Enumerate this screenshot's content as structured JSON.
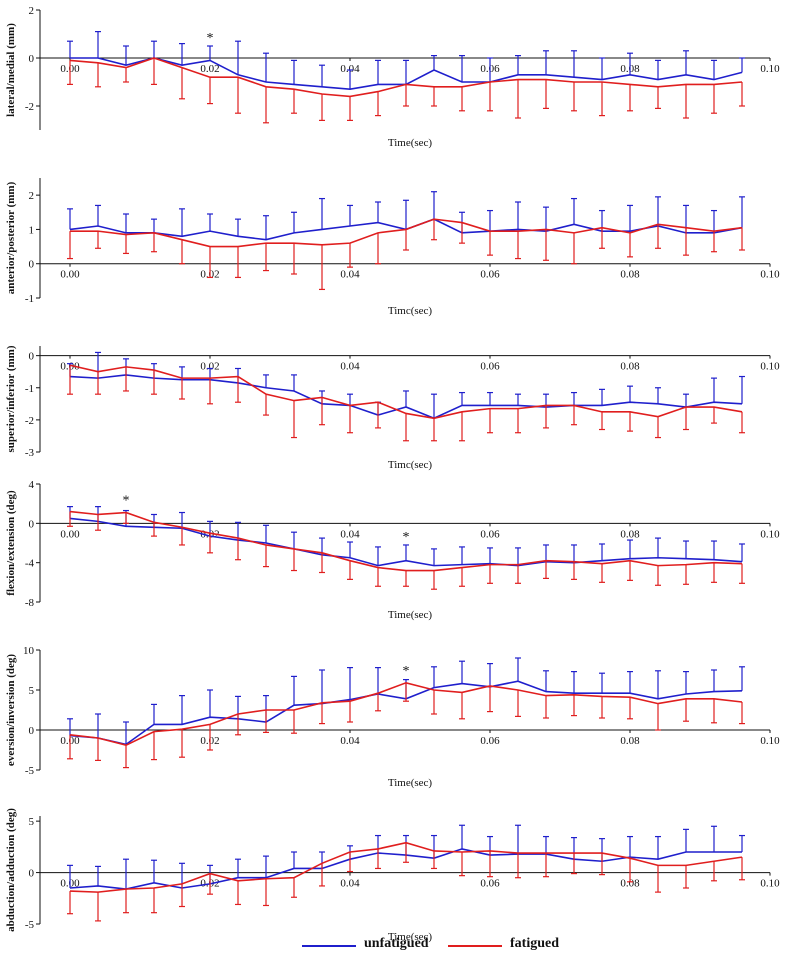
{
  "colors": {
    "unfatigued": "#1f1fcc",
    "fatigued": "#e01e1e",
    "axis": "#111111"
  },
  "legend": [
    {
      "key": "unfatigued",
      "label": "unfatigued"
    },
    {
      "key": "fatigued",
      "label": "fatigued"
    }
  ],
  "chart_data": [
    {
      "type": "line",
      "ylabel": "lateral/medial (mm)",
      "xlabel": "Time(sec)",
      "ylim": [
        -3,
        2
      ],
      "yticks": [
        -2,
        0,
        2
      ],
      "xticks": [
        "0.00",
        "0.02",
        "0.04",
        "0.06",
        "0.08",
        "0.10"
      ],
      "x": [
        0,
        0.004,
        0.008,
        0.012,
        0.016,
        0.02,
        0.024,
        0.028,
        0.032,
        0.036,
        0.04,
        0.044,
        0.048,
        0.052,
        0.056,
        0.06,
        0.064,
        0.068,
        0.072,
        0.076,
        0.08,
        0.084,
        0.088,
        0.092,
        0.096
      ],
      "series": [
        {
          "name": "unfatigued",
          "values": [
            0,
            0,
            -0.3,
            0,
            -0.3,
            -0.1,
            -0.7,
            -1.0,
            -1.1,
            -1.2,
            -1.3,
            -1.1,
            -1.1,
            -0.5,
            -1.0,
            -1.0,
            -0.7,
            -0.7,
            -0.8,
            -0.9,
            -0.7,
            -0.9,
            -0.7,
            -0.9,
            -0.6
          ],
          "err": [
            0.7,
            1.1,
            0.8,
            0.7,
            0.9,
            0.6,
            1.4,
            1.2,
            1.0,
            0.9,
            0.8,
            1.0,
            1.0,
            0.6,
            1.1,
            1.0,
            0.8,
            1.0,
            1.1,
            0.9,
            0.9,
            0.8,
            1.0,
            0.8,
            0.6
          ]
        },
        {
          "name": "fatigued",
          "values": [
            -0.1,
            -0.2,
            -0.4,
            0,
            -0.4,
            -0.8,
            -0.8,
            -1.2,
            -1.3,
            -1.5,
            -1.6,
            -1.4,
            -1.1,
            -1.2,
            -1.2,
            -1.0,
            -0.9,
            -0.9,
            -1.0,
            -1.0,
            -1.1,
            -1.2,
            -1.1,
            -1.1,
            -1.0
          ],
          "err": [
            1.0,
            1.0,
            0.6,
            1.1,
            1.3,
            1.1,
            1.5,
            1.5,
            1.0,
            1.1,
            1.0,
            1.0,
            0.9,
            0.8,
            1.0,
            1.2,
            1.6,
            1.2,
            1.2,
            1.4,
            1.1,
            0.9,
            1.4,
            1.2,
            1.0
          ]
        }
      ],
      "annotations": [
        {
          "x": 0.02,
          "text": "*"
        }
      ]
    },
    {
      "type": "line",
      "ylabel": "anterior/posterior (mm)",
      "xlabel": "Timc(sec)",
      "ylim": [
        -1,
        2.5
      ],
      "yticks": [
        -1,
        0,
        1,
        2
      ],
      "xticks": [
        "0.00",
        "0.02",
        "0.04",
        "0.06",
        "0.08",
        "0.10"
      ],
      "x": [
        0,
        0.004,
        0.008,
        0.012,
        0.016,
        0.02,
        0.024,
        0.028,
        0.032,
        0.036,
        0.04,
        0.044,
        0.048,
        0.052,
        0.056,
        0.06,
        0.064,
        0.068,
        0.072,
        0.076,
        0.08,
        0.084,
        0.088,
        0.092,
        0.096
      ],
      "series": [
        {
          "name": "unfatigued",
          "values": [
            1.0,
            1.1,
            0.9,
            0.9,
            0.8,
            0.95,
            0.8,
            0.7,
            0.9,
            1.0,
            1.1,
            1.2,
            1.0,
            1.3,
            0.9,
            0.95,
            1.0,
            0.95,
            1.15,
            0.95,
            0.95,
            1.1,
            0.9,
            0.9,
            1.05
          ],
          "err": [
            0.6,
            0.6,
            0.55,
            0.4,
            0.8,
            0.5,
            0.5,
            0.7,
            0.6,
            0.9,
            0.6,
            0.6,
            0.85,
            0.8,
            0.6,
            0.6,
            0.8,
            0.7,
            0.75,
            0.6,
            0.75,
            0.85,
            0.8,
            0.65,
            0.9
          ]
        },
        {
          "name": "fatigued",
          "values": [
            0.95,
            0.95,
            0.85,
            0.9,
            0.7,
            0.5,
            0.5,
            0.6,
            0.6,
            0.55,
            0.6,
            0.9,
            1.0,
            1.3,
            1.2,
            0.95,
            0.95,
            1.0,
            0.9,
            1.05,
            0.9,
            1.15,
            1.05,
            0.95,
            1.05
          ],
          "err": [
            0.8,
            0.5,
            0.55,
            0.55,
            0.7,
            0.9,
            0.9,
            0.8,
            0.9,
            1.3,
            0.7,
            0.9,
            0.6,
            0.6,
            0.6,
            0.7,
            0.8,
            0.9,
            0.9,
            0.6,
            0.7,
            0.7,
            0.8,
            0.6,
            0.65
          ]
        }
      ],
      "annotations": []
    },
    {
      "type": "line",
      "ylabel": "superior/inferior (mm)",
      "xlabel": "Timc(sec)",
      "ylim": [
        -3,
        0.3
      ],
      "yticks": [
        -3,
        -2,
        -1,
        0
      ],
      "xticks": [
        "0.00",
        "0.02",
        "0.04",
        "0.06",
        "0.08",
        "0.10"
      ],
      "x": [
        0,
        0.004,
        0.008,
        0.012,
        0.016,
        0.02,
        0.024,
        0.028,
        0.032,
        0.036,
        0.04,
        0.044,
        0.048,
        0.052,
        0.056,
        0.06,
        0.064,
        0.068,
        0.072,
        0.076,
        0.08,
        0.084,
        0.088,
        0.092,
        0.096
      ],
      "series": [
        {
          "name": "unfatigued",
          "values": [
            -0.65,
            -0.7,
            -0.6,
            -0.7,
            -0.75,
            -0.75,
            -0.85,
            -1.0,
            -1.1,
            -1.5,
            -1.55,
            -1.85,
            -1.6,
            -1.95,
            -1.55,
            -1.55,
            -1.55,
            -1.6,
            -1.55,
            -1.55,
            -1.45,
            -1.5,
            -1.6,
            -1.45,
            -1.5
          ],
          "err": [
            0.4,
            0.8,
            0.5,
            0.45,
            0.4,
            0.35,
            0.45,
            0.4,
            0.5,
            0.4,
            0.35,
            0.4,
            0.5,
            0.75,
            0.4,
            0.4,
            0.35,
            0.4,
            0.4,
            0.5,
            0.5,
            0.5,
            0.4,
            0.75,
            0.85
          ]
        },
        {
          "name": "fatigued",
          "values": [
            -0.3,
            -0.5,
            -0.35,
            -0.45,
            -0.7,
            -0.7,
            -0.65,
            -1.2,
            -1.4,
            -1.3,
            -1.55,
            -1.45,
            -1.8,
            -1.95,
            -1.75,
            -1.65,
            -1.65,
            -1.55,
            -1.55,
            -1.75,
            -1.75,
            -1.9,
            -1.6,
            -1.6,
            -1.75
          ],
          "err": [
            0.9,
            0.7,
            0.75,
            0.75,
            0.65,
            0.8,
            0.8,
            0.65,
            1.15,
            0.85,
            0.85,
            0.8,
            0.85,
            0.7,
            0.9,
            0.75,
            0.75,
            0.7,
            0.6,
            0.55,
            0.6,
            0.65,
            0.7,
            0.5,
            0.65
          ]
        }
      ],
      "annotations": []
    },
    {
      "type": "line",
      "ylabel": "flexion/extension (deg)",
      "xlabel": "Time(sec)",
      "ylim": [
        -8,
        4
      ],
      "yticks": [
        -8,
        -4,
        0,
        4
      ],
      "xticks": [
        "0.00",
        "0.02",
        "0.04",
        "0.06",
        "0.08",
        "0.10"
      ],
      "x": [
        0,
        0.004,
        0.008,
        0.012,
        0.016,
        0.02,
        0.024,
        0.028,
        0.032,
        0.036,
        0.04,
        0.044,
        0.048,
        0.052,
        0.056,
        0.06,
        0.064,
        0.068,
        0.072,
        0.076,
        0.08,
        0.084,
        0.088,
        0.092,
        0.096
      ],
      "series": [
        {
          "name": "unfatigued",
          "values": [
            0.5,
            0.2,
            -0.3,
            -0.4,
            -0.5,
            -1.3,
            -1.7,
            -2.0,
            -2.6,
            -3.2,
            -3.5,
            -4.3,
            -3.8,
            -4.3,
            -4.2,
            -4.1,
            -4.3,
            -3.9,
            -4.0,
            -3.8,
            -3.6,
            -3.5,
            -3.6,
            -3.7,
            -3.9
          ],
          "err": [
            1.2,
            1.5,
            1.6,
            1.3,
            1.6,
            1.5,
            1.8,
            1.8,
            1.7,
            1.7,
            1.6,
            1.9,
            1.6,
            1.7,
            1.8,
            1.6,
            1.8,
            1.7,
            1.8,
            1.7,
            1.9,
            2.0,
            1.8,
            1.9,
            1.8
          ]
        },
        {
          "name": "fatigued",
          "values": [
            1.2,
            0.9,
            1.1,
            0.1,
            -0.4,
            -1.0,
            -1.5,
            -2.2,
            -2.6,
            -3.0,
            -3.8,
            -4.5,
            -4.8,
            -4.8,
            -4.5,
            -4.2,
            -4.2,
            -3.8,
            -3.9,
            -4.1,
            -3.8,
            -4.3,
            -4.2,
            -4.0,
            -4.1
          ],
          "err": [
            1.5,
            1.6,
            1.1,
            1.4,
            1.8,
            2.0,
            2.2,
            2.2,
            2.2,
            2.0,
            1.9,
            1.9,
            1.6,
            1.9,
            1.9,
            1.9,
            1.9,
            1.8,
            1.8,
            1.9,
            2.0,
            2.0,
            2.0,
            2.0,
            2.0
          ]
        }
      ],
      "annotations": [
        {
          "x": 0.008,
          "text": "*"
        },
        {
          "x": 0.048,
          "text": "*"
        }
      ]
    },
    {
      "type": "line",
      "ylabel": "eversion/inversion (deg)",
      "xlabel": "Time(sec)",
      "ylim": [
        -5,
        10
      ],
      "yticks": [
        -5,
        0,
        5,
        10
      ],
      "xticks": [
        "0.00",
        "0.02",
        "0.04",
        "0.06",
        "0.08",
        "0.10"
      ],
      "x": [
        0,
        0.004,
        0.008,
        0.012,
        0.016,
        0.02,
        0.024,
        0.028,
        0.032,
        0.036,
        0.04,
        0.044,
        0.048,
        0.052,
        0.056,
        0.06,
        0.064,
        0.068,
        0.072,
        0.076,
        0.08,
        0.084,
        0.088,
        0.092,
        0.096
      ],
      "series": [
        {
          "name": "unfatigued",
          "values": [
            -0.7,
            -1.0,
            -1.8,
            0.7,
            0.7,
            1.6,
            1.4,
            1.0,
            3.1,
            3.3,
            3.8,
            4.5,
            3.9,
            5.3,
            5.8,
            5.4,
            6.1,
            4.8,
            4.6,
            4.6,
            4.6,
            3.9,
            4.5,
            4.8,
            4.9
          ],
          "err": [
            2.1,
            3.0,
            2.8,
            2.5,
            3.6,
            3.4,
            2.8,
            3.3,
            3.6,
            4.2,
            4.0,
            3.3,
            2.4,
            2.6,
            2.8,
            2.9,
            2.9,
            2.6,
            2.7,
            2.5,
            2.7,
            3.5,
            2.8,
            2.7,
            3.0
          ]
        },
        {
          "name": "fatigued",
          "values": [
            -0.6,
            -1.0,
            -1.9,
            -0.2,
            0.1,
            0.7,
            2.0,
            2.5,
            2.5,
            3.4,
            3.6,
            4.6,
            5.9,
            5.0,
            4.7,
            5.5,
            5.0,
            4.3,
            4.4,
            4.2,
            4.1,
            3.3,
            3.9,
            3.9,
            3.5
          ],
          "err": [
            3.0,
            2.8,
            2.8,
            3.5,
            3.5,
            3.2,
            2.6,
            2.8,
            2.9,
            2.6,
            2.6,
            2.2,
            2.3,
            3.0,
            3.3,
            3.2,
            3.3,
            2.8,
            2.6,
            2.7,
            2.7,
            3.3,
            2.8,
            3.0,
            2.7
          ]
        }
      ],
      "annotations": [
        {
          "x": 0.048,
          "text": "*"
        }
      ]
    },
    {
      "type": "line",
      "ylabel": "abduction/adduction (deg)",
      "xlabel": "Time(sec)",
      "ylim": [
        -5,
        5.5
      ],
      "yticks": [
        -5,
        0,
        5
      ],
      "xticks": [
        "0.00",
        "0.02",
        "0.04",
        "0.06",
        "0.08",
        "0.10"
      ],
      "x": [
        0,
        0.004,
        0.008,
        0.012,
        0.016,
        0.02,
        0.024,
        0.028,
        0.032,
        0.036,
        0.04,
        0.044,
        0.048,
        0.052,
        0.056,
        0.06,
        0.064,
        0.068,
        0.072,
        0.076,
        0.08,
        0.084,
        0.088,
        0.092,
        0.096
      ],
      "series": [
        {
          "name": "unfatigued",
          "values": [
            -1.5,
            -1.3,
            -1.6,
            -1.0,
            -1.5,
            -1.1,
            -0.5,
            -0.5,
            0.4,
            0.4,
            1.3,
            1.9,
            1.7,
            1.4,
            2.3,
            1.7,
            1.8,
            1.8,
            1.3,
            1.1,
            1.5,
            1.3,
            2.0,
            2.0,
            2.0
          ],
          "err": [
            2.2,
            1.9,
            2.9,
            2.2,
            2.4,
            1.8,
            1.8,
            2.1,
            1.6,
            1.6,
            1.3,
            1.7,
            1.9,
            2.2,
            2.3,
            1.8,
            2.8,
            1.7,
            2.1,
            2.2,
            2.0,
            2.2,
            2.2,
            2.5,
            1.6
          ]
        },
        {
          "name": "fatigued",
          "values": [
            -1.8,
            -1.9,
            -1.6,
            -1.5,
            -1.1,
            -0.1,
            -0.8,
            -0.6,
            -0.5,
            0.9,
            2.0,
            2.3,
            2.9,
            2.1,
            2.0,
            2.1,
            1.9,
            1.9,
            1.9,
            1.9,
            1.4,
            0.7,
            0.7,
            1.1,
            1.5
          ],
          "err": [
            2.2,
            2.8,
            2.3,
            2.4,
            2.2,
            2.0,
            2.3,
            2.6,
            1.9,
            2.2,
            1.9,
            1.9,
            1.9,
            1.7,
            2.3,
            2.5,
            2.4,
            2.3,
            2.0,
            2.1,
            2.3,
            2.6,
            2.2,
            1.9,
            2.2
          ]
        }
      ],
      "annotations": []
    }
  ]
}
